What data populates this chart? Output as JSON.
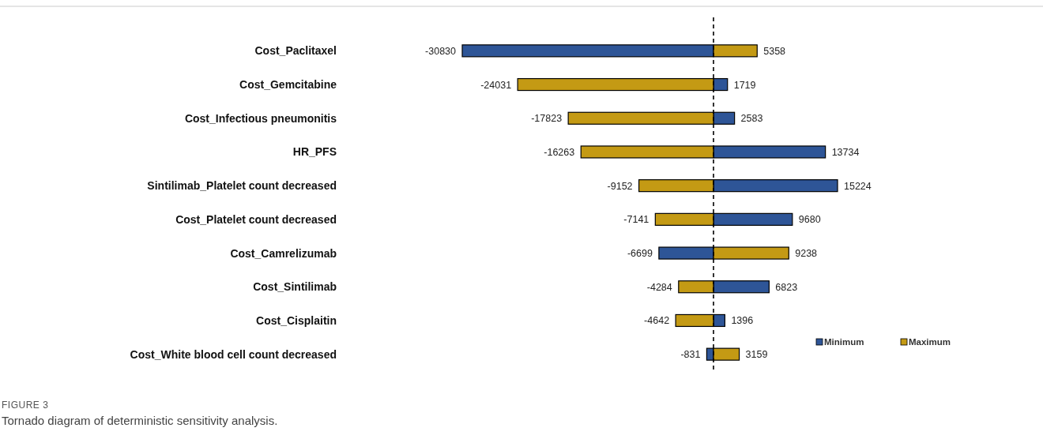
{
  "chart_data": {
    "type": "bar",
    "orientation": "horizontal",
    "data_labels": true,
    "stacked": true,
    "legend": "bottom right",
    "categories": [
      "Cost_Paclitaxel",
      "Cost_Gemcitabine",
      "Cost_Infectious pneumonitis",
      "HR_PFS",
      "Sintilimab_Platelet count decreased",
      "Cost_Platelet count decreased",
      "Cost_Camrelizumab",
      "Cost_Sintilimab",
      "Cost_Cisplaitin",
      "Cost_White blood cell count decreased"
    ],
    "series": [
      {
        "name": "Minimum",
        "color": "#2e5597",
        "values": [
          -30830,
          1719,
          2583,
          13734,
          15224,
          9680,
          -6699,
          6823,
          1396,
          -831
        ]
      },
      {
        "name": "Maximum",
        "color": "#c49a14",
        "values": [
          5358,
          -24031,
          -17823,
          -16263,
          -9152,
          -7141,
          9238,
          -4284,
          -4642,
          3159
        ]
      }
    ],
    "ref_lines": [
      {
        "axis": "x",
        "value": 0,
        "line_style": "dashed",
        "color": "#000000"
      }
    ],
    "annotations": [
      "FIGURE 3",
      "Tornado diagram of deterministic sensitivity analysis."
    ]
  }
}
